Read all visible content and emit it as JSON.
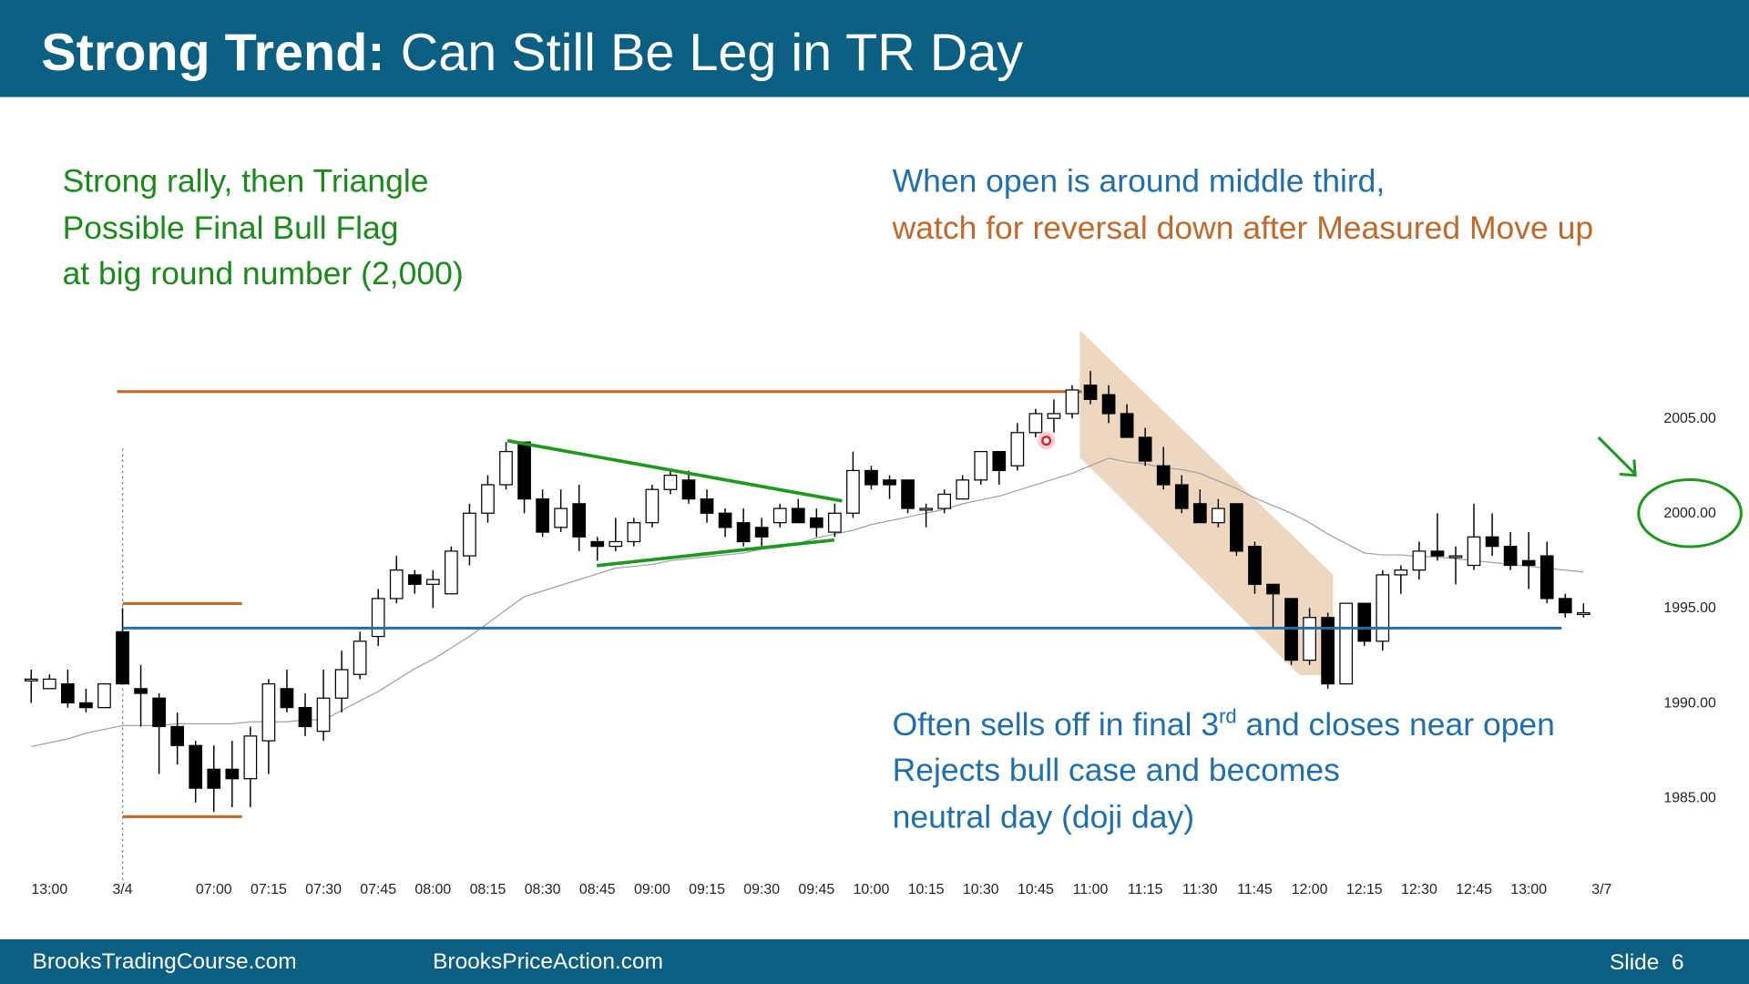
{
  "header": {
    "title_bold": "Strong Trend:",
    "title": "Can Still Be Leg in TR Day"
  },
  "annotations": {
    "left": [
      "Strong rally, then Triangle",
      "Possible Final Bull Flag",
      "at big round number (2,000)"
    ],
    "top_right": [
      "When open is around middle third,",
      "watch for reversal down after Measured Move up"
    ],
    "bottom_right": {
      "line1": [
        "Often sells off in final 3",
        "rd",
        "and closes near open"
      ],
      "line2": "Rejects bull case and becomes",
      "line3": "neutral day (doji day)"
    }
  },
  "chart_data": {
    "type": "candlestick",
    "categories": [
      null,
      "13:00",
      null,
      null,
      null,
      "3/4",
      null,
      null,
      null,
      null,
      "07:00",
      null,
      null,
      "07:15",
      null,
      null,
      "07:30",
      null,
      null,
      "07:45",
      null,
      null,
      "08:00",
      null,
      null,
      "08:15",
      null,
      null,
      "08:30",
      null,
      null,
      "08:45",
      null,
      null,
      "09:00",
      null,
      null,
      "09:15",
      null,
      null,
      "09:30",
      null,
      null,
      "09:45",
      null,
      null,
      "10:00",
      null,
      null,
      "10:15",
      null,
      null,
      "10:30",
      null,
      null,
      "10:45",
      null,
      null,
      "11:00",
      null,
      null,
      "11:15",
      null,
      null,
      "11:30",
      null,
      null,
      "11:45",
      null,
      null,
      "12:00",
      null,
      null,
      "12:15",
      null,
      null,
      "12:30",
      null,
      null,
      "12:45",
      null,
      null,
      "13:00",
      null,
      null,
      null,
      "3/7"
    ],
    "open": [
      1991.25,
      1990.75,
      1991.0,
      1990.0,
      1989.75,
      1993.75,
      1990.75,
      1990.25,
      1988.75,
      1987.75,
      1986.5,
      1986.5,
      1986.0,
      1988.0,
      1990.75,
      1989.75,
      1988.5,
      1990.25,
      1991.5,
      1993.5,
      1995.5,
      1996.75,
      1996.25,
      1995.75,
      1997.75,
      2000.0,
      2001.5,
      2003.75,
      2000.75,
      1999.25,
      2000.5,
      1998.5,
      1998.25,
      1998.5,
      1999.5,
      2001.25,
      2001.75,
      2000.75,
      2000.0,
      1999.5,
      1999.25,
      1999.5,
      2000.25,
      1999.75,
      1999.0,
      2000.0,
      2002.25,
      2001.75,
      2001.75,
      2000.25,
      2000.25,
      2000.75,
      2001.75,
      2003.25,
      2002.5,
      2004.25,
      2005.0,
      2005.25,
      2006.75,
      2006.25,
      2005.25,
      2004.0,
      2002.5,
      2001.5,
      2000.5,
      1999.5,
      2000.5,
      1998.25,
      1996.25,
      1995.5,
      1992.25,
      1994.5,
      1991.0,
      1995.25,
      1993.25,
      1996.75,
      1997.0,
      1998.0,
      1997.75,
      1997.25,
      1998.75,
      1998.25,
      1997.5,
      1997.75,
      1995.5,
      1994.75,
      null
    ],
    "high": [
      1991.75,
      1991.5,
      1991.75,
      1990.75,
      1991.0,
      1995.0,
      1992.0,
      1990.5,
      1989.5,
      1988.0,
      1987.75,
      1988.0,
      1988.75,
      1991.25,
      1991.75,
      1990.5,
      1991.75,
      1992.75,
      1993.75,
      1996.0,
      1997.75,
      1997.0,
      1997.0,
      1998.25,
      2000.5,
      2002.0,
      2003.75,
      2003.75,
      2001.25,
      2001.25,
      2001.5,
      1998.75,
      1999.75,
      1999.75,
      2001.5,
      2002.25,
      2002.25,
      2001.25,
      2000.25,
      2000.25,
      1999.75,
      2000.5,
      2000.75,
      2000.25,
      2000.5,
      2003.25,
      2002.5,
      2002.0,
      2001.75,
      2000.5,
      2001.25,
      2002.0,
      2003.25,
      2003.25,
      2004.75,
      2005.5,
      2006.0,
      2006.75,
      2007.5,
      2006.75,
      2005.75,
      2004.5,
      2003.5,
      2002.0,
      2001.25,
      2000.75,
      2000.5,
      1998.5,
      1996.25,
      1995.5,
      1995.0,
      1994.75,
      1995.25,
      1995.25,
      1997.0,
      1997.25,
      1998.5,
      2000.0,
      1998.25,
      2000.5,
      2000.0,
      1999.0,
      1999.0,
      1998.5,
      1995.75,
      1995.25,
      null
    ],
    "low": [
      1990.0,
      1990.75,
      1989.75,
      1989.5,
      1989.75,
      1991.0,
      1988.75,
      1986.25,
      1986.75,
      1984.75,
      1984.25,
      1984.5,
      1984.5,
      1986.25,
      1989.5,
      1988.25,
      1988.0,
      1989.5,
      1991.25,
      1993.0,
      1995.25,
      1995.75,
      1995.0,
      1995.75,
      1997.25,
      1999.5,
      2001.25,
      2000.0,
      1998.75,
      1999.0,
      1998.0,
      1997.5,
      1998.0,
      1998.25,
      1999.25,
      2001.0,
      2000.5,
      1999.5,
      1998.75,
      1998.25,
      1998.25,
      1999.25,
      1999.5,
      1998.75,
      1998.75,
      1999.75,
      2001.25,
      2000.75,
      2000.0,
      1999.25,
      2000.0,
      2000.75,
      2001.5,
      2001.5,
      2002.25,
      2004.0,
      2004.25,
      2005.0,
      2005.75,
      2004.75,
      2004.0,
      2002.5,
      2001.25,
      2000.0,
      1999.5,
      1999.25,
      1997.75,
      1995.75,
      1994.0,
      1992.0,
      1992.0,
      1990.75,
      1991.0,
      1993.0,
      1992.75,
      1995.75,
      1996.5,
      1997.5,
      1996.25,
      1997.0,
      1997.75,
      1997.0,
      1996.0,
      1995.25,
      1994.5,
      1994.5,
      null
    ],
    "close": [
      1991.25,
      1991.25,
      1990.0,
      1989.75,
      1991.0,
      1991.0,
      1990.5,
      1988.75,
      1987.75,
      1985.5,
      1985.5,
      1986.0,
      1988.25,
      1991.0,
      1989.75,
      1988.75,
      1990.25,
      1991.75,
      1993.25,
      1995.5,
      1997.0,
      1996.25,
      1996.5,
      1998.0,
      2000.0,
      2001.5,
      2003.25,
      2000.75,
      1999.0,
      2000.25,
      1998.75,
      1998.25,
      1998.5,
      1999.5,
      2001.25,
      2002.0,
      2000.75,
      2000.0,
      1999.25,
      1998.5,
      1998.75,
      2000.25,
      1999.5,
      1999.25,
      2000.0,
      2002.25,
      2001.5,
      2001.5,
      2000.25,
      2000.25,
      2001.0,
      2001.75,
      2003.25,
      2002.25,
      2004.25,
      2005.25,
      2005.25,
      2006.5,
      2006.0,
      2005.25,
      2004.0,
      2002.75,
      2001.5,
      2000.25,
      1999.5,
      2000.25,
      1998.0,
      1996.25,
      1995.75,
      1992.25,
      1994.5,
      1991.0,
      1995.25,
      1993.25,
      1996.75,
      1997.0,
      1998.0,
      1997.75,
      1997.75,
      1998.75,
      1998.25,
      1997.25,
      1997.25,
      1995.5,
      1994.75,
      1994.75,
      null
    ],
    "moving_average": {
      "color": "#a0a0a0",
      "values": [
        1987.7,
        1987.9,
        1988.1,
        1988.4,
        1988.6,
        1988.8,
        1988.8,
        1988.8,
        1988.9,
        1988.9,
        1988.9,
        1988.9,
        1989.0,
        1989.0,
        1989.0,
        1989.1,
        1989.1,
        1989.6,
        1990.1,
        1990.6,
        1991.2,
        1991.8,
        1992.3,
        1992.9,
        1993.5,
        1994.2,
        1994.9,
        1995.6,
        1995.9,
        1996.2,
        1996.5,
        1996.8,
        1997.1,
        1997.2,
        1997.3,
        1997.5,
        1997.6,
        1997.7,
        1997.8,
        1997.9,
        1998.1,
        1998.2,
        1998.4,
        1998.7,
        1998.9,
        1999.1,
        1999.4,
        1999.6,
        1999.8,
        2000.0,
        2000.2,
        2000.5,
        2000.7,
        2000.9,
        2001.2,
        2001.5,
        2001.8,
        2002.1,
        2002.5,
        2002.9,
        2002.7,
        2002.6,
        2002.4,
        2002.3,
        2002.1,
        2001.7,
        2001.3,
        2000.8,
        2000.4,
        2000.0,
        1999.5,
        1998.9,
        1998.4,
        1997.9,
        1997.8,
        1997.8,
        1997.7,
        1997.7,
        1997.6,
        1997.5,
        1997.4,
        1997.3,
        1997.2,
        1997.1,
        1997.0,
        1996.9,
        null
      ]
    },
    "up_color": "#ffffff",
    "down_color": "#000000",
    "ylim": [
      1981,
      2009
    ],
    "yticks": [
      {
        "value": 1985,
        "label": "1985.00"
      },
      {
        "value": 1990,
        "label": "1990.00"
      },
      {
        "value": 1995,
        "label": "1995.00"
      },
      {
        "value": 2000,
        "label": "2000.00"
      },
      {
        "value": 2005,
        "label": "2005.00"
      }
    ],
    "grid": false
  },
  "footer": {
    "left": "BrooksTradingCourse.com",
    "center": "BrooksPriceAction.com",
    "slide": "Slide  6"
  }
}
